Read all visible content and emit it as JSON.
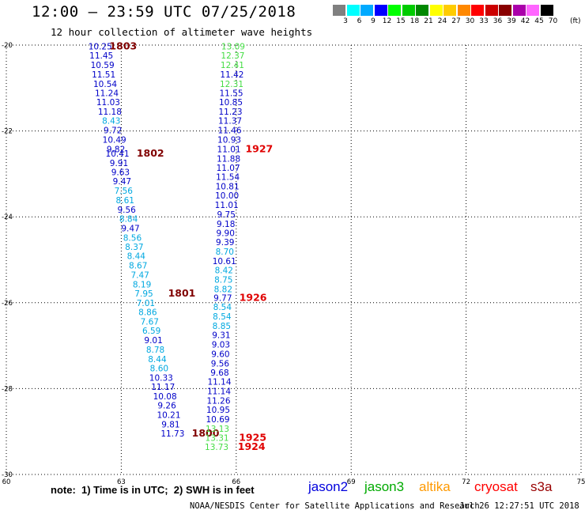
{
  "header": {
    "title": "12:00 — 23:59 UTC 07/25/2018",
    "subtitle": "12 hour collection of altimeter wave heights"
  },
  "legend": {
    "unit": "(ft)",
    "bins": [
      {
        "label": "3",
        "color": "#808080"
      },
      {
        "label": "6",
        "color": "#00ffff"
      },
      {
        "label": "9",
        "color": "#00aaff"
      },
      {
        "label": "12",
        "color": "#0000ff"
      },
      {
        "label": "15",
        "color": "#00ff00"
      },
      {
        "label": "18",
        "color": "#00cc00"
      },
      {
        "label": "21",
        "color": "#008800"
      },
      {
        "label": "24",
        "color": "#ffff00"
      },
      {
        "label": "27",
        "color": "#ffcc00"
      },
      {
        "label": "30",
        "color": "#ff8800"
      },
      {
        "label": "33",
        "color": "#ff0000"
      },
      {
        "label": "36",
        "color": "#cc0000"
      },
      {
        "label": "39",
        "color": "#880000"
      },
      {
        "label": "42",
        "color": "#aa00aa"
      },
      {
        "label": "45",
        "color": "#ff66ff"
      },
      {
        "label": "70",
        "color": "#000000"
      }
    ]
  },
  "map": {
    "lon_range": [
      60,
      75
    ],
    "lat_range": [
      -30,
      -20
    ],
    "lon_ticks": [
      "60",
      "63",
      "66",
      "69",
      "72",
      "75"
    ],
    "lat_ticks": [
      "-20",
      "-22",
      "-24",
      "-26",
      "-28",
      "-30"
    ],
    "colors": {
      "blue": "#0000c8",
      "cyan": "#00a8e0",
      "green": "#44dd44",
      "darkred": "#800000",
      "red": "#e00000"
    },
    "passes": [
      {
        "points": [
          {
            "lon": 62.45,
            "lat": -20.03,
            "v": "10.25",
            "c": "blue"
          },
          {
            "lon": 62.48,
            "lat": -20.24,
            "v": "11.45",
            "c": "blue"
          },
          {
            "lon": 62.51,
            "lat": -20.46,
            "v": "10.59",
            "c": "blue"
          },
          {
            "lon": 62.54,
            "lat": -20.68,
            "v": "11.51",
            "c": "blue"
          },
          {
            "lon": 62.58,
            "lat": -20.9,
            "v": "10.54",
            "c": "blue"
          },
          {
            "lon": 62.62,
            "lat": -21.11,
            "v": "11.24",
            "c": "blue"
          },
          {
            "lon": 62.66,
            "lat": -21.33,
            "v": "11.03",
            "c": "blue"
          },
          {
            "lon": 62.7,
            "lat": -21.55,
            "v": "11.18",
            "c": "blue"
          },
          {
            "lon": 62.74,
            "lat": -21.76,
            "v": "8.43",
            "c": "cyan"
          },
          {
            "lon": 62.78,
            "lat": -21.98,
            "v": "9.72",
            "c": "blue"
          },
          {
            "lon": 62.82,
            "lat": -22.2,
            "v": "10.49",
            "c": "blue"
          },
          {
            "lon": 62.86,
            "lat": -22.42,
            "v": "9.82",
            "c": "blue"
          }
        ],
        "label": {
          "lon": 63.05,
          "lat": -20.03,
          "text": "1803",
          "c": "darkred"
        }
      },
      {
        "points": [
          {
            "lon": 62.9,
            "lat": -22.52,
            "v": "10.41",
            "c": "blue"
          },
          {
            "lon": 62.94,
            "lat": -22.74,
            "v": "9.91",
            "c": "blue"
          },
          {
            "lon": 62.98,
            "lat": -22.96,
            "v": "9.63",
            "c": "blue"
          },
          {
            "lon": 63.02,
            "lat": -23.17,
            "v": "9.47",
            "c": "blue"
          },
          {
            "lon": 63.06,
            "lat": -23.39,
            "v": "7.56",
            "c": "cyan"
          },
          {
            "lon": 63.1,
            "lat": -23.61,
            "v": "8.61",
            "c": "cyan"
          },
          {
            "lon": 63.14,
            "lat": -23.83,
            "v": "9.56",
            "c": "blue"
          },
          {
            "lon": 63.19,
            "lat": -24.04,
            "v": "8.84",
            "c": "cyan"
          },
          {
            "lon": 63.24,
            "lat": -24.26,
            "v": "9.47",
            "c": "blue"
          },
          {
            "lon": 63.29,
            "lat": -24.48,
            "v": "8.56",
            "c": "cyan"
          },
          {
            "lon": 63.34,
            "lat": -24.7,
            "v": "8.37",
            "c": "cyan"
          },
          {
            "lon": 63.39,
            "lat": -24.91,
            "v": "8.44",
            "c": "cyan"
          },
          {
            "lon": 63.44,
            "lat": -25.13,
            "v": "8.67",
            "c": "cyan"
          },
          {
            "lon": 63.49,
            "lat": -25.35,
            "v": "7.47",
            "c": "cyan"
          },
          {
            "lon": 63.54,
            "lat": -25.57,
            "v": "8.19",
            "c": "cyan"
          }
        ],
        "label": {
          "lon": 63.76,
          "lat": -22.52,
          "text": "1802",
          "c": "darkred"
        }
      },
      {
        "points": [
          {
            "lon": 63.59,
            "lat": -25.78,
            "v": "7.95",
            "c": "cyan"
          },
          {
            "lon": 63.64,
            "lat": -26.0,
            "v": "7.01",
            "c": "cyan"
          },
          {
            "lon": 63.69,
            "lat": -26.22,
            "v": "8.86",
            "c": "cyan"
          },
          {
            "lon": 63.74,
            "lat": -26.44,
            "v": "7.67",
            "c": "cyan"
          },
          {
            "lon": 63.79,
            "lat": -26.65,
            "v": "6.59",
            "c": "cyan"
          },
          {
            "lon": 63.84,
            "lat": -26.87,
            "v": "9.01",
            "c": "blue"
          },
          {
            "lon": 63.89,
            "lat": -27.09,
            "v": "8.78",
            "c": "cyan"
          },
          {
            "lon": 63.94,
            "lat": -27.31,
            "v": "8.44",
            "c": "cyan"
          },
          {
            "lon": 63.99,
            "lat": -27.52,
            "v": "8.60",
            "c": "cyan"
          },
          {
            "lon": 64.04,
            "lat": -27.74,
            "v": "10.33",
            "c": "blue"
          },
          {
            "lon": 64.09,
            "lat": -27.96,
            "v": "11.17",
            "c": "blue"
          },
          {
            "lon": 64.14,
            "lat": -28.18,
            "v": "10.08",
            "c": "blue"
          },
          {
            "lon": 64.19,
            "lat": -28.39,
            "v": "9.26",
            "c": "blue"
          },
          {
            "lon": 64.24,
            "lat": -28.61,
            "v": "10.21",
            "c": "blue"
          },
          {
            "lon": 64.29,
            "lat": -28.83,
            "v": "9.81",
            "c": "blue"
          }
        ],
        "label": {
          "lon": 64.58,
          "lat": -25.78,
          "text": "1801",
          "c": "darkred"
        }
      },
      {
        "points": [
          {
            "lon": 64.34,
            "lat": -29.04,
            "v": "11.73",
            "c": "blue"
          }
        ],
        "label": {
          "lon": 65.2,
          "lat": -29.04,
          "text": "1800",
          "c": "darkred"
        }
      },
      {
        "points": [
          {
            "lon": 65.92,
            "lat": -20.03,
            "v": "13.09",
            "c": "green"
          },
          {
            "lon": 65.91,
            "lat": -20.24,
            "v": "12.37",
            "c": "green"
          },
          {
            "lon": 65.9,
            "lat": -20.46,
            "v": "12.41",
            "c": "green"
          },
          {
            "lon": 65.89,
            "lat": -20.68,
            "v": "11.42",
            "c": "blue"
          },
          {
            "lon": 65.88,
            "lat": -20.9,
            "v": "12.31",
            "c": "green"
          },
          {
            "lon": 65.87,
            "lat": -21.11,
            "v": "11.55",
            "c": "blue"
          },
          {
            "lon": 65.86,
            "lat": -21.33,
            "v": "10.85",
            "c": "blue"
          },
          {
            "lon": 65.85,
            "lat": -21.55,
            "v": "11.23",
            "c": "blue"
          },
          {
            "lon": 65.84,
            "lat": -21.76,
            "v": "11.37",
            "c": "blue"
          },
          {
            "lon": 65.83,
            "lat": -21.98,
            "v": "11.46",
            "c": "blue"
          },
          {
            "lon": 65.82,
            "lat": -22.2,
            "v": "10.93",
            "c": "blue"
          },
          {
            "lon": 65.81,
            "lat": -22.42,
            "v": "11.01",
            "c": "blue"
          },
          {
            "lon": 65.8,
            "lat": -22.64,
            "v": "11.88",
            "c": "blue"
          },
          {
            "lon": 65.79,
            "lat": -22.85,
            "v": "11.07",
            "c": "blue"
          },
          {
            "lon": 65.78,
            "lat": -23.07,
            "v": "11.54",
            "c": "blue"
          },
          {
            "lon": 65.77,
            "lat": -23.29,
            "v": "10.81",
            "c": "blue"
          },
          {
            "lon": 65.76,
            "lat": -23.5,
            "v": "10.00",
            "c": "blue"
          },
          {
            "lon": 65.75,
            "lat": -23.72,
            "v": "11.01",
            "c": "blue"
          },
          {
            "lon": 65.74,
            "lat": -23.94,
            "v": "9.75",
            "c": "blue"
          },
          {
            "lon": 65.73,
            "lat": -24.16,
            "v": "9.18",
            "c": "blue"
          },
          {
            "lon": 65.72,
            "lat": -24.37,
            "v": "9.90",
            "c": "blue"
          },
          {
            "lon": 65.71,
            "lat": -24.59,
            "v": "9.39",
            "c": "blue"
          },
          {
            "lon": 65.7,
            "lat": -24.81,
            "v": "8.70",
            "c": "cyan"
          },
          {
            "lon": 65.69,
            "lat": -25.03,
            "v": "10.61",
            "c": "blue"
          },
          {
            "lon": 65.68,
            "lat": -25.24,
            "v": "8.42",
            "c": "cyan"
          },
          {
            "lon": 65.67,
            "lat": -25.46,
            "v": "8.75",
            "c": "cyan"
          },
          {
            "lon": 65.66,
            "lat": -25.68,
            "v": "8.82",
            "c": "cyan"
          }
        ],
        "label": {
          "lon": 66.6,
          "lat": -22.42,
          "text": "1927",
          "c": "red"
        }
      },
      {
        "points": [
          {
            "lon": 65.65,
            "lat": -25.88,
            "v": "9.77",
            "c": "blue"
          },
          {
            "lon": 65.64,
            "lat": -26.1,
            "v": "8.54",
            "c": "cyan"
          },
          {
            "lon": 65.63,
            "lat": -26.32,
            "v": "8.54",
            "c": "cyan"
          },
          {
            "lon": 65.62,
            "lat": -26.54,
            "v": "8.85",
            "c": "cyan"
          },
          {
            "lon": 65.61,
            "lat": -26.75,
            "v": "9.31",
            "c": "blue"
          },
          {
            "lon": 65.6,
            "lat": -26.97,
            "v": "9.03",
            "c": "blue"
          },
          {
            "lon": 65.59,
            "lat": -27.19,
            "v": "9.60",
            "c": "blue"
          },
          {
            "lon": 65.58,
            "lat": -27.41,
            "v": "9.56",
            "c": "blue"
          },
          {
            "lon": 65.57,
            "lat": -27.62,
            "v": "9.68",
            "c": "blue"
          },
          {
            "lon": 65.56,
            "lat": -27.84,
            "v": "11.14",
            "c": "blue"
          },
          {
            "lon": 65.55,
            "lat": -28.06,
            "v": "11.14",
            "c": "blue"
          },
          {
            "lon": 65.54,
            "lat": -28.28,
            "v": "11.26",
            "c": "blue"
          },
          {
            "lon": 65.53,
            "lat": -28.49,
            "v": "10.95",
            "c": "blue"
          },
          {
            "lon": 65.52,
            "lat": -28.71,
            "v": "10.69",
            "c": "blue"
          }
        ],
        "label": {
          "lon": 66.44,
          "lat": -25.88,
          "text": "1926",
          "c": "red"
        }
      },
      {
        "points": [
          {
            "lon": 65.51,
            "lat": -28.93,
            "v": "13.13",
            "c": "green"
          },
          {
            "lon": 65.5,
            "lat": -29.14,
            "v": "13.31",
            "c": "green"
          }
        ],
        "label": {
          "lon": 66.43,
          "lat": -29.14,
          "text": "1925",
          "c": "red"
        }
      },
      {
        "points": [
          {
            "lon": 65.49,
            "lat": -29.36,
            "v": "13.73",
            "c": "green"
          }
        ],
        "label": {
          "lon": 66.4,
          "lat": -29.36,
          "text": "1924",
          "c": "red"
        }
      }
    ]
  },
  "footnote": "note:  1) Time is in UTC;  2) SWH is in feet",
  "satellites": [
    {
      "name": "jason2",
      "color": "#0000dd"
    },
    {
      "name": "jason3",
      "color": "#00aa00"
    },
    {
      "name": "altika",
      "color": "#ff9900"
    },
    {
      "name": "cryosat",
      "color": "#ff0000"
    },
    {
      "name": "s3a",
      "color": "#990000"
    }
  ],
  "credit": "NOAA/NESDIS Center for Satellite Applications and Research",
  "timestamp": "Jul 26 12:27:51 UTC 2018"
}
